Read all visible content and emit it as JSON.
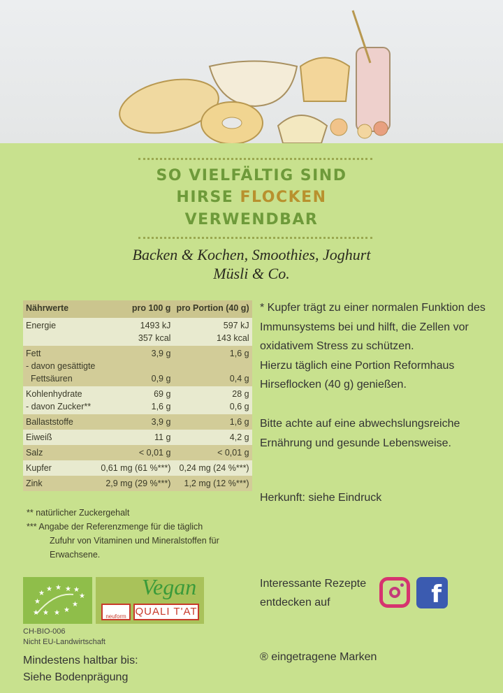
{
  "headline": {
    "line1": "SO VIELFÄLTIG SIND",
    "line2a": "HIRSE ",
    "line2b": "FLOCKEN",
    "line3": "VERWENDBAR"
  },
  "uses": {
    "line1": "Backen & Kochen, Smoothies, Joghurt",
    "line2": "Müsli & Co."
  },
  "nutrition": {
    "headers": [
      "Nährwerte",
      "pro 100 g",
      "pro Portion (40 g)"
    ],
    "rows": [
      {
        "label": "Energie\n",
        "v100": "1493 kJ\n357 kcal",
        "vp": "597 kJ\n143 kcal"
      },
      {
        "label": "Fett\n- davon gesättigte\n  Fettsäuren",
        "v100": "3,9 g\n\n0,9 g",
        "vp": "1,6 g\n\n0,4 g"
      },
      {
        "label": "Kohlenhydrate\n- davon Zucker**",
        "v100": "69 g\n1,6 g",
        "vp": "28 g\n0,6 g"
      },
      {
        "label": "Ballaststoffe",
        "v100": "3,9 g",
        "vp": "1,6 g"
      },
      {
        "label": "Eiweiß",
        "v100": "11 g",
        "vp": "4,2 g"
      },
      {
        "label": "Salz",
        "v100": "< 0,01 g",
        "vp": "< 0,01 g"
      },
      {
        "label": "Kupfer",
        "v100": "0,61 mg (61 %***)",
        "vp": "0,24 mg (24 %***)"
      },
      {
        "label": "Zink",
        "v100": "2,9 mg (29 %***)",
        "vp": "1,2 mg (12 %***)"
      }
    ]
  },
  "footnotes": {
    "f1": "**  natürlicher Zuckergehalt",
    "f2": "***  Angabe der Referenzmenge für die täglich",
    "f3": "Zufuhr von Vitaminen und Mineralstoffen für",
    "f4": "Erwachsene."
  },
  "info": {
    "claim": [
      "* Kupfer trägt zu einer normalen Funktion des",
      "Immunsystems bei und hilft, die Zellen vor",
      "oxidativem Stress zu schützen.",
      "Hierzu täglich eine Portion Reformhaus",
      "Hirseflocken (40 g) genießen."
    ],
    "advice": [
      "Bitte achte auf eine abwechslungsreiche",
      "Ernährung und gesunde  Lebensweise."
    ],
    "origin": "Herkunft: siehe Eindruck",
    "recipes": [
      "Interessante Rezepte",
      "entdecken auf"
    ],
    "trademark": "® eingetragene Marken"
  },
  "logos": {
    "vegan": "Vegan",
    "neuform": "neuform",
    "quality": "QUALI T'AT"
  },
  "cert": {
    "code": "CH-BIO-006",
    "origin": "Nicht EU-Landwirtschaft"
  },
  "bestbefore": {
    "line1": "Mindestens haltbar bis:",
    "line2": "Siehe Bodenprägung"
  },
  "colors": {
    "background": "#c8e18e",
    "headline": "#6e9a3a",
    "accent": "#b8912e",
    "instagram": "#d6336f",
    "facebook": "#3b5bb0"
  },
  "icons": [
    "instagram-icon",
    "facebook-icon",
    "eu-organic-leaf-icon"
  ]
}
